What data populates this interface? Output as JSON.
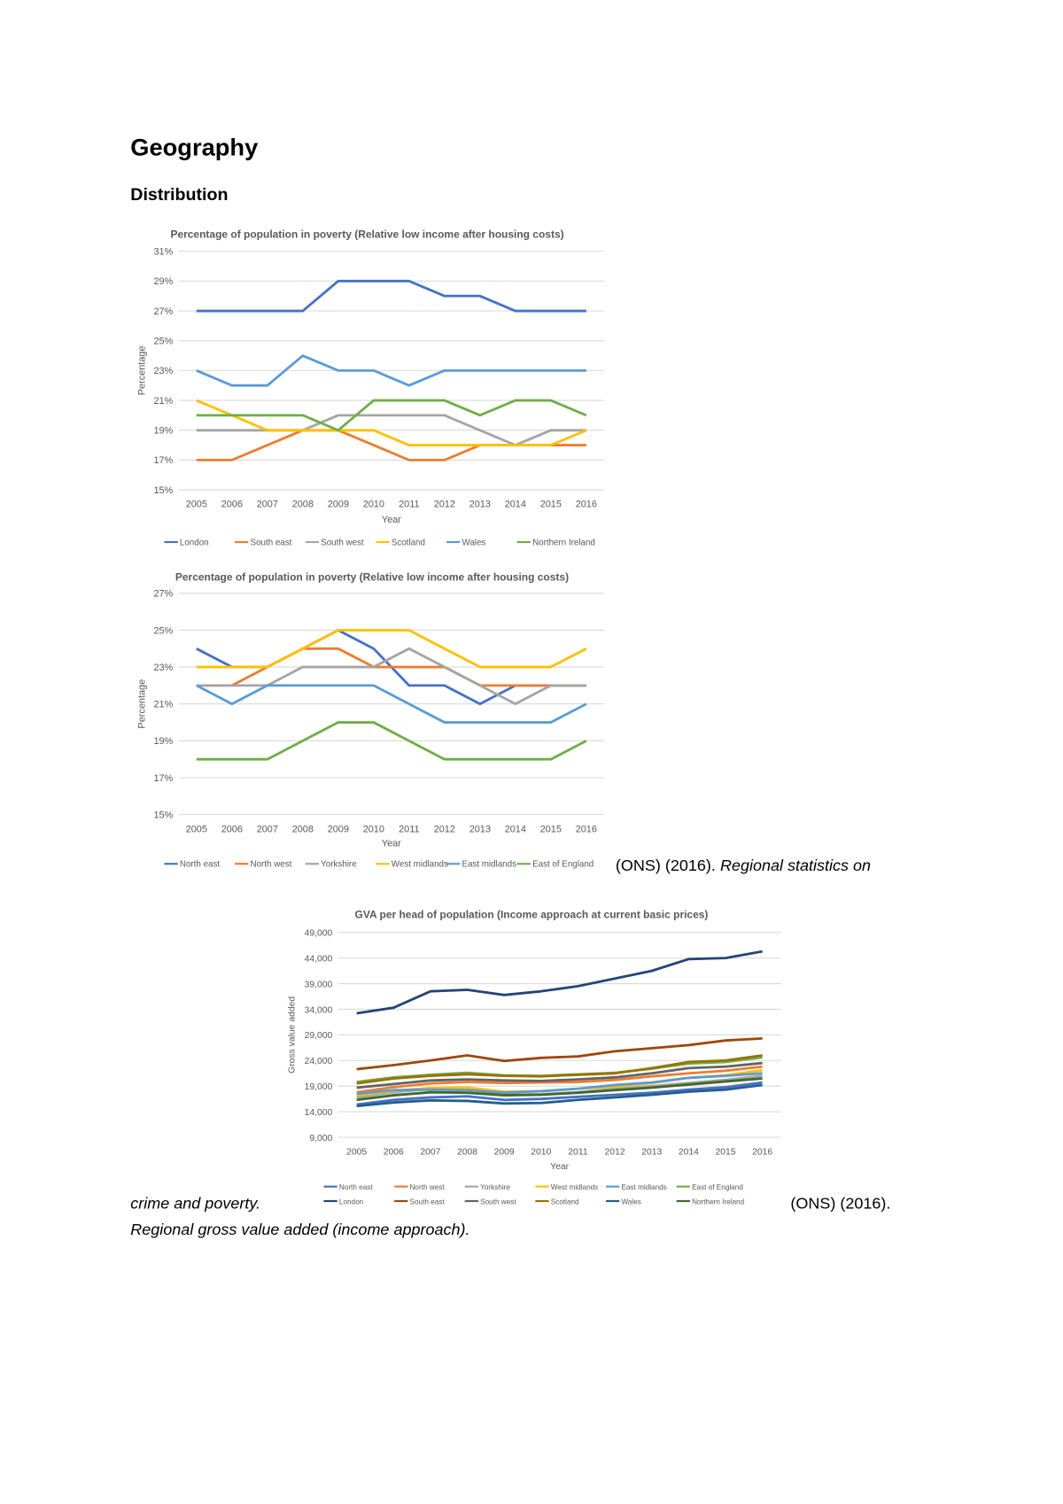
{
  "document": {
    "heading": "Geography",
    "subheading": "Distribution",
    "caption1_plain": "(ONS) (2016). ",
    "caption1_italic": "Regional statistics on",
    "caption2_italic": "crime and poverty.",
    "caption2_plain": "(ONS) (2016).",
    "caption3_italic": "Regional gross value added (income approach)."
  },
  "chart_data": [
    {
      "type": "line",
      "title": "Percentage of population in poverty (Relative low income after housing costs)",
      "xlabel": "Year",
      "ylabel": "Percentage",
      "categories": [
        "2005",
        "2006",
        "2007",
        "2008",
        "2009",
        "2010",
        "2011",
        "2012",
        "2013",
        "2014",
        "2015",
        "2016"
      ],
      "ylim": [
        15,
        31
      ],
      "y_ticks": [
        "15%",
        "17%",
        "19%",
        "21%",
        "23%",
        "25%",
        "27%",
        "29%",
        "31%"
      ],
      "grid": true,
      "legend": "bottom",
      "series": [
        {
          "name": "London",
          "color": "#4472C4",
          "values": [
            27,
            27,
            27,
            27,
            29,
            29,
            29,
            28,
            28,
            27,
            27,
            27
          ]
        },
        {
          "name": "South east",
          "color": "#ED7D31",
          "values": [
            17,
            17,
            18,
            19,
            19,
            18,
            17,
            17,
            18,
            18,
            18,
            18
          ]
        },
        {
          "name": "South west",
          "color": "#A5A5A5",
          "values": [
            19,
            19,
            19,
            19,
            20,
            20,
            20,
            20,
            19,
            18,
            19,
            19
          ]
        },
        {
          "name": "Scotland",
          "color": "#FFC000",
          "values": [
            21,
            20,
            19,
            19,
            19,
            19,
            18,
            18,
            18,
            18,
            18,
            19
          ]
        },
        {
          "name": "Wales",
          "color": "#5B9BD5",
          "values": [
            23,
            22,
            22,
            24,
            23,
            23,
            22,
            23,
            23,
            23,
            23,
            23
          ]
        },
        {
          "name": "Northern Ireland",
          "color": "#70AD47",
          "values": [
            20,
            20,
            20,
            20,
            19,
            21,
            21,
            21,
            20,
            21,
            21,
            20
          ]
        }
      ]
    },
    {
      "type": "line",
      "title": "Percentage of population in poverty (Relative low income after housing costs)",
      "xlabel": "Year",
      "ylabel": "Percentage",
      "categories": [
        "2005",
        "2006",
        "2007",
        "2008",
        "2009",
        "2010",
        "2011",
        "2012",
        "2013",
        "2014",
        "2015",
        "2016"
      ],
      "ylim": [
        15,
        27
      ],
      "y_ticks": [
        "15%",
        "17%",
        "19%",
        "21%",
        "23%",
        "25%",
        "27%"
      ],
      "grid": true,
      "legend": "bottom",
      "series": [
        {
          "name": "North east",
          "color": "#4472C4",
          "values": [
            24,
            23,
            23,
            24,
            25,
            24,
            22,
            22,
            21,
            22,
            22,
            22
          ]
        },
        {
          "name": "North west",
          "color": "#ED7D31",
          "values": [
            22,
            22,
            23,
            24,
            24,
            23,
            23,
            23,
            22,
            22,
            22,
            22
          ]
        },
        {
          "name": "Yorkshire",
          "color": "#A5A5A5",
          "values": [
            22,
            22,
            22,
            23,
            23,
            23,
            24,
            23,
            22,
            21,
            22,
            22
          ]
        },
        {
          "name": "West midlands",
          "color": "#FFC000",
          "values": [
            23,
            23,
            23,
            24,
            25,
            25,
            25,
            24,
            23,
            23,
            23,
            24
          ]
        },
        {
          "name": "East midlands",
          "color": "#5B9BD5",
          "values": [
            22,
            21,
            22,
            22,
            22,
            22,
            21,
            20,
            20,
            20,
            20,
            21
          ]
        },
        {
          "name": "East of England",
          "color": "#70AD47",
          "values": [
            18,
            18,
            18,
            19,
            20,
            20,
            19,
            18,
            18,
            18,
            18,
            19
          ]
        }
      ]
    },
    {
      "type": "line",
      "title": "GVA per head of population (Income approach at current basic prices)",
      "xlabel": "Year",
      "ylabel": "Gross value added",
      "categories": [
        "2005",
        "2006",
        "2007",
        "2008",
        "2009",
        "2010",
        "2011",
        "2012",
        "2013",
        "2014",
        "2015",
        "2016"
      ],
      "ylim": [
        9000,
        49000
      ],
      "y_ticks": [
        "9,000",
        "14,000",
        "19,000",
        "24,000",
        "29,000",
        "34,000",
        "39,000",
        "44,000",
        "49,000"
      ],
      "grid": true,
      "legend": "bottom",
      "series": [
        {
          "name": "North east",
          "color": "#4472C4",
          "values": [
            15400,
            16300,
            16800,
            17000,
            16300,
            16500,
            16900,
            17300,
            17700,
            18300,
            18800,
            19700
          ]
        },
        {
          "name": "North west",
          "color": "#ED7D31",
          "values": [
            17800,
            18800,
            19500,
            19800,
            19600,
            19700,
            19800,
            20200,
            20900,
            21500,
            22000,
            22800
          ]
        },
        {
          "name": "Yorkshire",
          "color": "#A5A5A5",
          "values": [
            16800,
            17800,
            18500,
            18500,
            17300,
            17400,
            17800,
            18500,
            19000,
            19600,
            20200,
            21000
          ]
        },
        {
          "name": "West midlands",
          "color": "#FFC000",
          "values": [
            17200,
            18100,
            18600,
            18700,
            17900,
            18000,
            18500,
            18900,
            19600,
            20600,
            21100,
            22100
          ]
        },
        {
          "name": "East midlands",
          "color": "#5B9BD5",
          "values": [
            17500,
            18200,
            18300,
            18200,
            17700,
            18000,
            18500,
            19200,
            19700,
            20600,
            21000,
            21500
          ]
        },
        {
          "name": "East of England",
          "color": "#70AD47",
          "values": [
            19800,
            20700,
            21200,
            21600,
            21100,
            21000,
            21300,
            21600,
            22400,
            23400,
            23700,
            24600
          ]
        },
        {
          "name": "London",
          "color": "#264478",
          "values": [
            33200,
            34300,
            37500,
            37800,
            36800,
            37500,
            38500,
            40000,
            41500,
            43800,
            44000,
            45300
          ]
        },
        {
          "name": "South east",
          "color": "#9E480E",
          "values": [
            22300,
            23100,
            24000,
            25000,
            23900,
            24500,
            24800,
            25800,
            26400,
            27000,
            27900,
            28300
          ]
        },
        {
          "name": "South west",
          "color": "#636363",
          "values": [
            18700,
            19400,
            20100,
            20300,
            20100,
            20000,
            20300,
            20700,
            21500,
            22500,
            22800,
            23500
          ]
        },
        {
          "name": "Scotland",
          "color": "#997300",
          "values": [
            19500,
            20500,
            21000,
            21300,
            21000,
            20900,
            21200,
            21500,
            22500,
            23700,
            24000,
            25000
          ]
        },
        {
          "name": "Wales",
          "color": "#255E91",
          "values": [
            15100,
            15800,
            16200,
            16100,
            15600,
            15700,
            16300,
            16800,
            17300,
            17900,
            18300,
            19200
          ]
        },
        {
          "name": "Northern Ireland",
          "color": "#43682B",
          "values": [
            16300,
            17200,
            17800,
            17700,
            17200,
            17300,
            17700,
            18200,
            18700,
            19300,
            19900,
            20500
          ]
        }
      ]
    }
  ]
}
